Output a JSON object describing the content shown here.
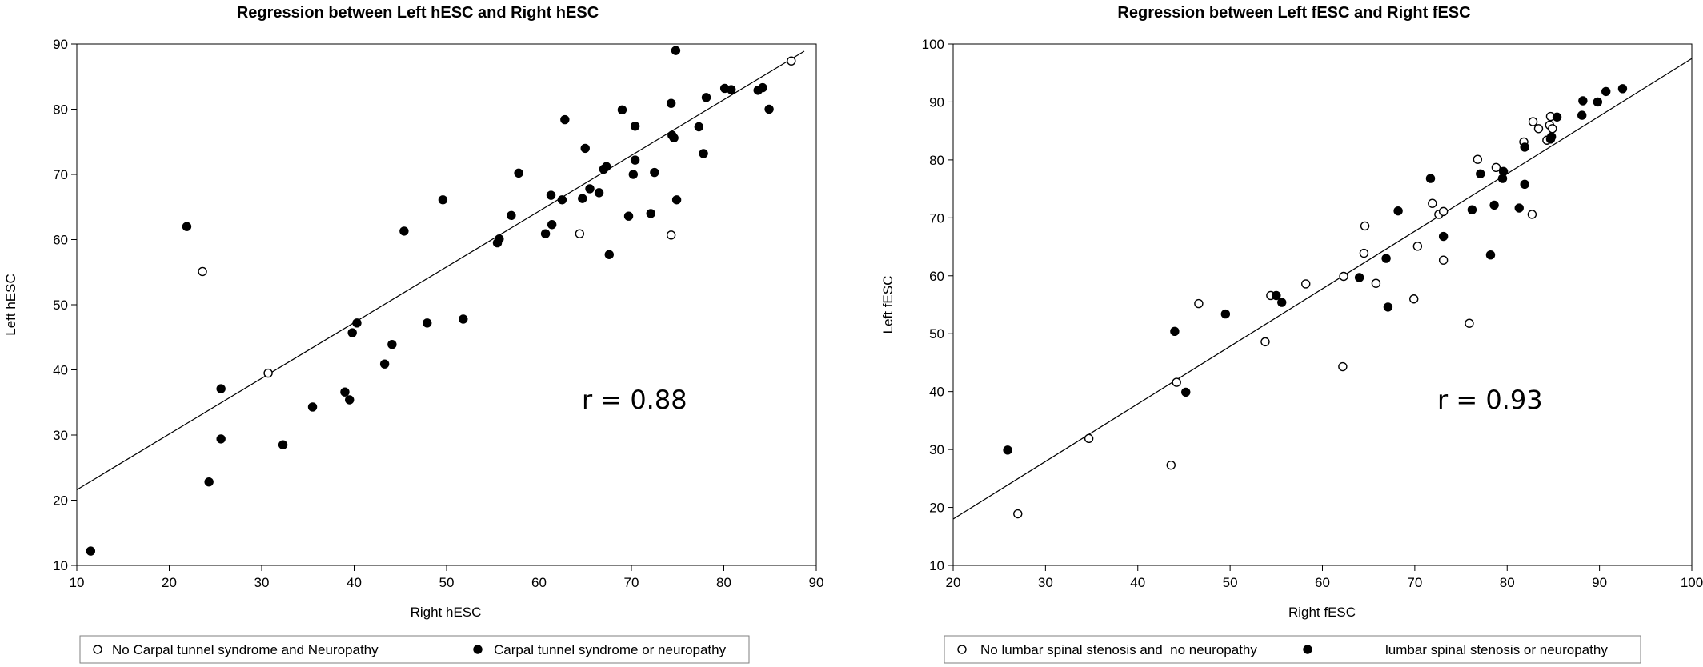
{
  "chart_data": [
    {
      "type": "scatter",
      "title": "Regression between Left hESC and Right hESC",
      "xlabel": "Right hESC",
      "ylabel": "Left hESC",
      "xlim": [
        10,
        90
      ],
      "ylim": [
        10,
        90
      ],
      "xticks": [
        10,
        20,
        30,
        40,
        50,
        60,
        70,
        80,
        90
      ],
      "yticks": [
        10,
        20,
        30,
        40,
        50,
        60,
        70,
        80,
        90
      ],
      "annotation": "r = 0.88",
      "regression_line": {
        "x": [
          10,
          88.7
        ],
        "y": [
          21.6,
          88.9
        ]
      },
      "legend_position": "bottom",
      "series": [
        {
          "name": "No Carpal tunnel syndrome and Neuropathy",
          "marker": "open-circle",
          "points": [
            [
              23.6,
              55.1
            ],
            [
              30.7,
              39.5
            ],
            [
              64.4,
              60.9
            ],
            [
              74.3,
              60.7
            ],
            [
              87.3,
              87.4
            ]
          ]
        },
        {
          "name": "Carpal tunnel syndrome or neuropathy",
          "marker": "filled-circle",
          "points": [
            [
              11.5,
              12.2
            ],
            [
              21.9,
              62.0
            ],
            [
              24.3,
              22.8
            ],
            [
              25.6,
              37.1
            ],
            [
              25.6,
              29.4
            ],
            [
              32.3,
              28.5
            ],
            [
              35.5,
              34.3
            ],
            [
              39.0,
              36.6
            ],
            [
              39.5,
              35.4
            ],
            [
              39.8,
              45.7
            ],
            [
              40.3,
              47.2
            ],
            [
              43.3,
              40.9
            ],
            [
              44.1,
              43.9
            ],
            [
              45.4,
              61.3
            ],
            [
              47.9,
              47.2
            ],
            [
              49.6,
              66.1
            ],
            [
              51.8,
              47.8
            ],
            [
              55.5,
              59.5
            ],
            [
              55.7,
              60.1
            ],
            [
              57.0,
              63.7
            ],
            [
              57.8,
              70.2
            ],
            [
              60.7,
              60.9
            ],
            [
              61.3,
              66.8
            ],
            [
              61.4,
              62.3
            ],
            [
              62.5,
              66.1
            ],
            [
              62.8,
              78.4
            ],
            [
              64.7,
              66.3
            ],
            [
              65.0,
              74.0
            ],
            [
              65.5,
              67.8
            ],
            [
              66.5,
              67.2
            ],
            [
              67.0,
              70.8
            ],
            [
              67.3,
              71.2
            ],
            [
              67.6,
              57.7
            ],
            [
              69.0,
              79.9
            ],
            [
              69.7,
              63.6
            ],
            [
              70.2,
              70.0
            ],
            [
              70.4,
              72.2
            ],
            [
              70.4,
              77.4
            ],
            [
              72.1,
              64.0
            ],
            [
              72.5,
              70.3
            ],
            [
              74.3,
              80.9
            ],
            [
              74.4,
              76.0
            ],
            [
              74.6,
              75.6
            ],
            [
              74.8,
              89.0
            ],
            [
              74.9,
              66.1
            ],
            [
              77.3,
              77.3
            ],
            [
              77.8,
              73.2
            ],
            [
              78.1,
              81.8
            ],
            [
              80.1,
              83.2
            ],
            [
              80.8,
              83.0
            ],
            [
              83.7,
              82.9
            ],
            [
              84.2,
              83.3
            ],
            [
              84.9,
              80.0
            ]
          ]
        }
      ]
    },
    {
      "type": "scatter",
      "title": "Regression between Left fESC and Right fESC",
      "xlabel": "Right fESC",
      "ylabel": "Left fESC",
      "xlim": [
        20,
        100
      ],
      "ylim": [
        10,
        100
      ],
      "xticks": [
        20,
        30,
        40,
        50,
        60,
        70,
        80,
        90,
        100
      ],
      "yticks": [
        10,
        20,
        30,
        40,
        50,
        60,
        70,
        80,
        90,
        100
      ],
      "annotation": "r = 0.93",
      "regression_line": {
        "x": [
          20,
          100
        ],
        "y": [
          18.0,
          97.5
        ]
      },
      "legend_position": "bottom",
      "series": [
        {
          "name": "No lumbar spinal stenosis and  no neuropathy",
          "marker": "open-circle",
          "points": [
            [
              27.0,
              18.9
            ],
            [
              34.7,
              31.9
            ],
            [
              43.6,
              27.3
            ],
            [
              44.2,
              41.6
            ],
            [
              46.6,
              55.2
            ],
            [
              53.8,
              48.6
            ],
            [
              54.4,
              56.6
            ],
            [
              58.2,
              58.6
            ],
            [
              62.2,
              44.3
            ],
            [
              62.3,
              59.9
            ],
            [
              64.5,
              63.9
            ],
            [
              64.6,
              68.6
            ],
            [
              65.8,
              58.7
            ],
            [
              69.9,
              56.0
            ],
            [
              70.3,
              65.1
            ],
            [
              71.9,
              72.5
            ],
            [
              72.6,
              70.6
            ],
            [
              73.1,
              62.7
            ],
            [
              73.1,
              71.1
            ],
            [
              75.9,
              51.8
            ],
            [
              76.8,
              80.1
            ],
            [
              78.8,
              78.7
            ],
            [
              81.8,
              83.1
            ],
            [
              82.7,
              70.6
            ],
            [
              82.8,
              86.6
            ],
            [
              83.4,
              85.4
            ],
            [
              84.3,
              83.4
            ],
            [
              84.6,
              86.0
            ],
            [
              84.7,
              87.5
            ],
            [
              84.9,
              85.4
            ]
          ]
        },
        {
          "name": "lumbar spinal stenosis or neuropathy",
          "marker": "filled-circle",
          "points": [
            [
              25.9,
              29.9
            ],
            [
              44.0,
              50.4
            ],
            [
              45.2,
              39.9
            ],
            [
              49.5,
              53.4
            ],
            [
              55.0,
              56.6
            ],
            [
              55.6,
              55.4
            ],
            [
              64.0,
              59.7
            ],
            [
              66.9,
              63.0
            ],
            [
              67.1,
              54.6
            ],
            [
              68.2,
              71.2
            ],
            [
              71.7,
              76.8
            ],
            [
              73.1,
              66.8
            ],
            [
              76.2,
              71.4
            ],
            [
              77.1,
              77.6
            ],
            [
              78.2,
              63.6
            ],
            [
              78.6,
              72.2
            ],
            [
              79.5,
              76.8
            ],
            [
              79.6,
              78.0
            ],
            [
              81.3,
              71.7
            ],
            [
              81.9,
              75.8
            ],
            [
              81.9,
              82.2
            ],
            [
              84.7,
              83.6
            ],
            [
              84.8,
              84.0
            ],
            [
              85.4,
              87.4
            ],
            [
              88.1,
              87.7
            ],
            [
              88.2,
              90.2
            ],
            [
              89.8,
              90.0
            ],
            [
              90.7,
              91.8
            ],
            [
              92.5,
              92.3
            ]
          ]
        }
      ]
    }
  ]
}
